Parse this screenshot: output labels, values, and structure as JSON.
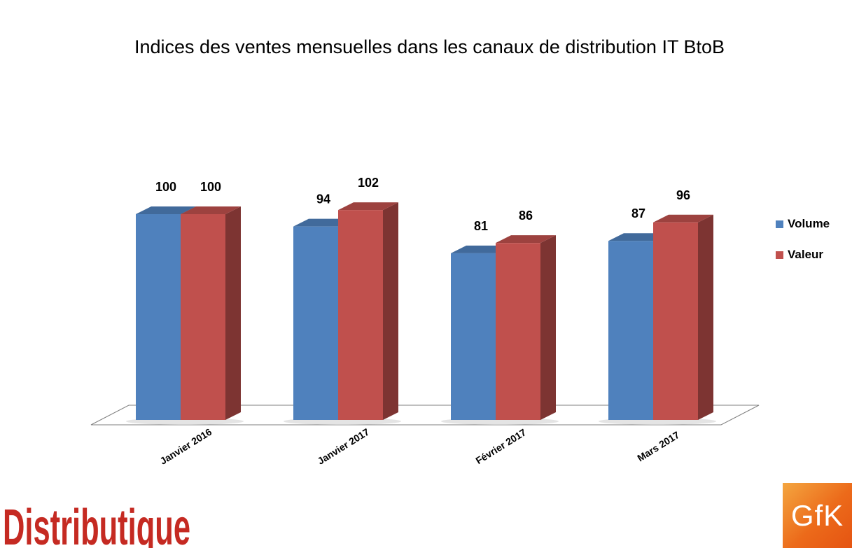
{
  "chart_data": {
    "type": "bar",
    "title": "Indices des ventes mensuelles dans les canaux de distribution IT BtoB",
    "categories": [
      "Janvier 2016",
      "Janvier 2017",
      "Février 2017",
      "Mars 2017"
    ],
    "series": [
      {
        "name": "Volume",
        "values": [
          100,
          94,
          81,
          87
        ],
        "color": "#4f81bd"
      },
      {
        "name": "Valeur",
        "values": [
          100,
          102,
          86,
          96
        ],
        "color": "#c0504d"
      }
    ],
    "ylim": [
      0,
      100
    ],
    "grid": false,
    "legend_position": "right",
    "xlabel": "",
    "ylabel": ""
  },
  "branding": {
    "left_logo_text": "Distributique",
    "right_logo_text": "GfK",
    "left_logo_color": "#c52a22",
    "right_logo_color": "#ec6a1a"
  }
}
